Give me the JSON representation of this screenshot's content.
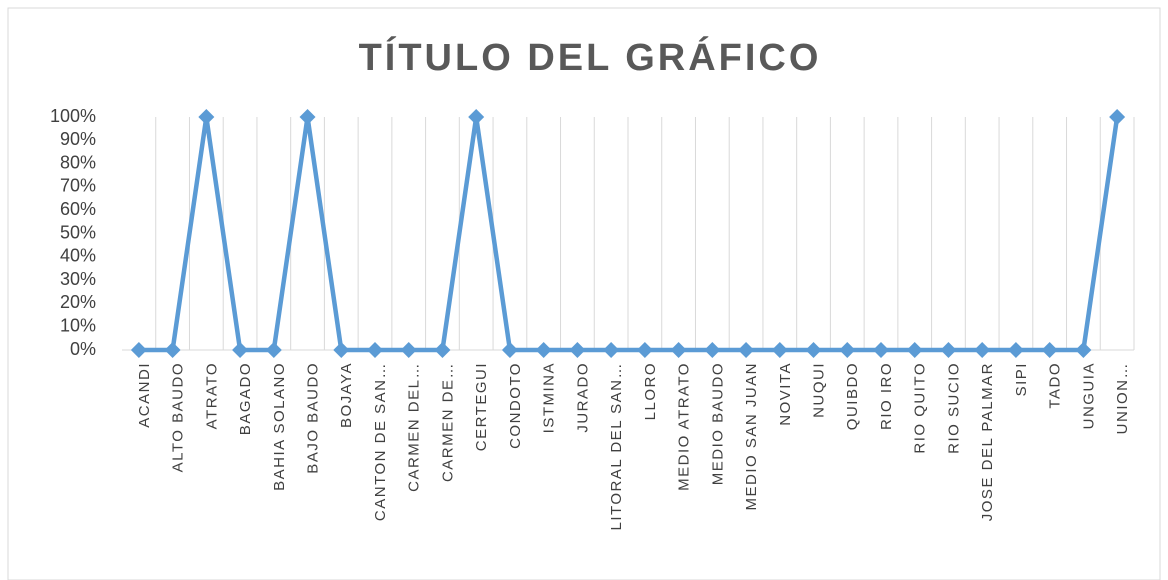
{
  "chart_data": {
    "type": "line",
    "title": "TÍTULO  DEL GRÁFICO",
    "categories": [
      "ACANDI",
      "ALTO BAUDO",
      "ATRATO",
      "BAGADO",
      "BAHIA SOLANO",
      "BAJO BAUDO",
      "BOJAYA",
      "CANTON DE SAN…",
      "CARMEN DEL…",
      "CARMEN DE…",
      "CERTEGUI",
      "CONDOTO",
      "ISTMINA",
      "JURADO",
      "LITORAL DEL SAN…",
      "LLORO",
      "MEDIO ATRATO",
      "MEDIO BAUDO",
      "MEDIO SAN JUAN",
      "NOVITA",
      "NUQUI",
      "QUIBDO",
      "RIO IRO",
      "RIO QUITO",
      "RIO SUCIO",
      "JOSE DEL PALMAR",
      "SIPI",
      "TADO",
      "UNGUIA",
      "UNION…"
    ],
    "values": [
      0,
      0,
      100,
      0,
      0,
      100,
      0,
      0,
      0,
      0,
      100,
      0,
      0,
      0,
      0,
      0,
      0,
      0,
      0,
      0,
      0,
      0,
      0,
      0,
      0,
      0,
      0,
      0,
      0,
      100
    ],
    "color": "#5b9bd5",
    "ylim": [
      0,
      100
    ],
    "yticks": [
      {
        "value": 0,
        "label": "0%"
      },
      {
        "value": 10,
        "label": "10%"
      },
      {
        "value": 20,
        "label": "20%"
      },
      {
        "value": 30,
        "label": "30%"
      },
      {
        "value": 40,
        "label": "40%"
      },
      {
        "value": 50,
        "label": "50%"
      },
      {
        "value": 60,
        "label": "60%"
      },
      {
        "value": 70,
        "label": "70%"
      },
      {
        "value": 80,
        "label": "80%"
      },
      {
        "value": 90,
        "label": "90%"
      },
      {
        "value": 100,
        "label": "100%"
      }
    ],
    "grid": true
  }
}
